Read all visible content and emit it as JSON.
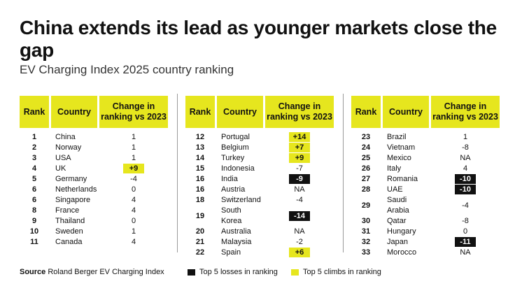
{
  "title": "China extends its lead as younger markets close the gap",
  "subtitle": "EV Charging Index 2025 country ranking",
  "colors": {
    "climb": "#e6e61e",
    "loss": "#111111"
  },
  "headers": {
    "rank": "Rank",
    "country": "Country",
    "change": "Change in ranking vs 2023"
  },
  "chart_data": {
    "type": "table",
    "title": "China extends its lead as younger markets close the gap",
    "subtitle": "EV Charging Index 2025 country ranking",
    "columns": [
      "Rank",
      "Country",
      "Change in ranking vs 2023"
    ],
    "panels": [
      {
        "rows": [
          {
            "rank": "1",
            "country": "China",
            "change": "1"
          },
          {
            "rank": "2",
            "country": "Norway",
            "change": "1"
          },
          {
            "rank": "3",
            "country": "USA",
            "change": "1"
          },
          {
            "rank": "4",
            "country": "UK",
            "change": "+9",
            "highlight": "climb"
          },
          {
            "rank": "5",
            "country": "Germany",
            "change": "-4"
          },
          {
            "rank": "6",
            "country": "Netherlands",
            "change": "0"
          },
          {
            "rank": "6",
            "country": "Singapore",
            "change": "4"
          },
          {
            "rank": "8",
            "country": "France",
            "change": "4"
          },
          {
            "rank": "9",
            "country": "Thailand",
            "change": "0"
          },
          {
            "rank": "10",
            "country": "Sweden",
            "change": "1"
          },
          {
            "rank": "11",
            "country": "Canada",
            "change": "4"
          }
        ]
      },
      {
        "rows": [
          {
            "rank": "12",
            "country": "Portugal",
            "change": "+14",
            "highlight": "climb"
          },
          {
            "rank": "13",
            "country": "Belgium",
            "change": "+7",
            "highlight": "climb"
          },
          {
            "rank": "14",
            "country": "Turkey",
            "change": "+9",
            "highlight": "climb"
          },
          {
            "rank": "15",
            "country": "Indonesia",
            "change": "-7"
          },
          {
            "rank": "16",
            "country": "India",
            "change": "-9",
            "highlight": "loss"
          },
          {
            "rank": "16",
            "country": "Austria",
            "change": "NA"
          },
          {
            "rank": "18",
            "country": "Switzerland",
            "change": "-4"
          },
          {
            "rank": "19",
            "country": "South Korea",
            "change": "-14",
            "highlight": "loss"
          },
          {
            "rank": "20",
            "country": "Australia",
            "change": "NA"
          },
          {
            "rank": "21",
            "country": "Malaysia",
            "change": "-2"
          },
          {
            "rank": "22",
            "country": "Spain",
            "change": "+6",
            "highlight": "climb"
          }
        ]
      },
      {
        "rows": [
          {
            "rank": "23",
            "country": "Brazil",
            "change": "1"
          },
          {
            "rank": "24",
            "country": "Vietnam",
            "change": "-8"
          },
          {
            "rank": "25",
            "country": "Mexico",
            "change": "NA"
          },
          {
            "rank": "26",
            "country": "Italy",
            "change": "4"
          },
          {
            "rank": "27",
            "country": "Romania",
            "change": "-10",
            "highlight": "loss"
          },
          {
            "rank": "28",
            "country": "UAE",
            "change": "-10",
            "highlight": "loss"
          },
          {
            "rank": "29",
            "country": "Saudi Arabia",
            "change": "-4"
          },
          {
            "rank": "30",
            "country": "Qatar",
            "change": "-8"
          },
          {
            "rank": "31",
            "country": "Hungary",
            "change": "0"
          },
          {
            "rank": "32",
            "country": "Japan",
            "change": "-11",
            "highlight": "loss"
          },
          {
            "rank": "33",
            "country": "Morocco",
            "change": "NA"
          }
        ]
      }
    ]
  },
  "footer": {
    "source_label": "Source",
    "source_text": "Roland Berger EV Charging Index",
    "legend_losses": "Top 5 losses in ranking",
    "legend_climbs": "Top 5 climbs in ranking"
  }
}
